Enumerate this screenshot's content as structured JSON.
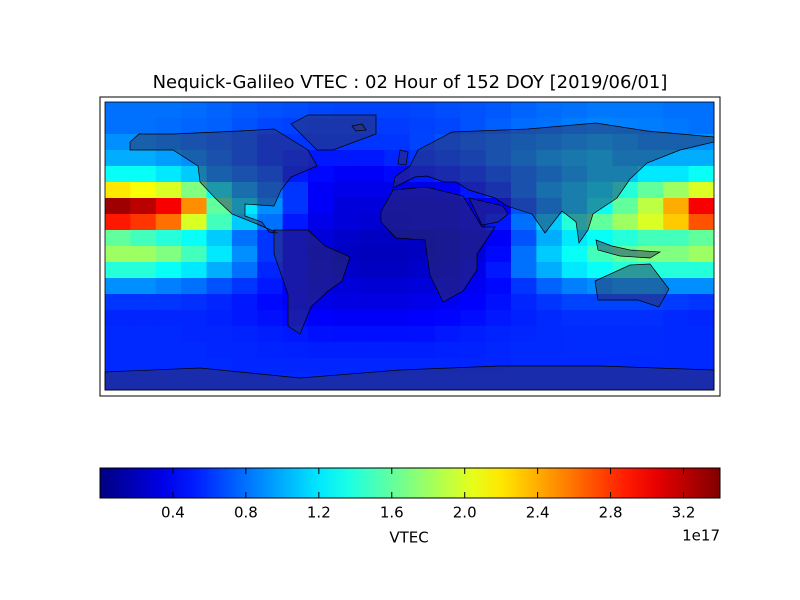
{
  "chart_data": {
    "type": "heatmap",
    "title": "Nequick-Galileo VTEC : 02 Hour of 152 DOY [2019/06/01]",
    "colormap": "jet",
    "clim": [
      0,
      3.4
    ],
    "colorbar_label": "VTEC",
    "colorbar_offset_label": "1e17",
    "colorbar_ticks": [
      0.4,
      0.8,
      1.2,
      1.6,
      {
        "value": 2,
        "label": "2.0"
      },
      2.4,
      2.8,
      3.2
    ],
    "values": [
      [
        0.8,
        0.8,
        0.8,
        0.78,
        0.75,
        0.72,
        0.7,
        0.68,
        0.66,
        0.65,
        0.65,
        0.65,
        0.66,
        0.68,
        0.7,
        0.72,
        0.75,
        0.78,
        0.8,
        0.82,
        0.82,
        0.82,
        0.8,
        0.8
      ],
      [
        0.8,
        0.8,
        0.78,
        0.76,
        0.74,
        0.7,
        0.66,
        0.64,
        0.62,
        0.62,
        0.62,
        0.62,
        0.64,
        0.66,
        0.7,
        0.74,
        0.78,
        0.8,
        0.84,
        0.86,
        0.85,
        0.84,
        0.82,
        0.8
      ],
      [
        0.9,
        0.9,
        0.85,
        0.8,
        0.75,
        0.7,
        0.6,
        0.6,
        0.6,
        0.6,
        0.6,
        0.6,
        0.65,
        0.7,
        0.75,
        0.8,
        0.85,
        0.9,
        0.95,
        1.0,
        0.95,
        0.9,
        0.9,
        0.9
      ],
      [
        1.0,
        1.0,
        0.95,
        0.9,
        0.8,
        0.7,
        0.6,
        0.55,
        0.5,
        0.5,
        0.5,
        0.55,
        0.6,
        0.65,
        0.7,
        0.8,
        0.9,
        1.0,
        1.05,
        1.1,
        1.0,
        1.0,
        1.0,
        1.0
      ],
      [
        1.3,
        1.3,
        1.2,
        1.1,
        0.9,
        0.8,
        0.7,
        0.5,
        0.45,
        0.4,
        0.4,
        0.45,
        0.5,
        0.55,
        0.6,
        0.7,
        0.8,
        0.9,
        1.0,
        1.1,
        1.1,
        1.2,
        1.2,
        1.3
      ],
      [
        2.2,
        2.1,
        2.0,
        1.7,
        1.3,
        1.0,
        0.8,
        0.6,
        0.4,
        0.35,
        0.35,
        0.35,
        0.35,
        0.4,
        0.5,
        0.6,
        0.8,
        1.0,
        1.1,
        1.2,
        1.4,
        1.6,
        1.8,
        2.0
      ],
      [
        3.3,
        3.2,
        3.0,
        2.5,
        1.6,
        1.2,
        0.9,
        0.6,
        0.4,
        0.3,
        0.3,
        0.3,
        0.3,
        0.3,
        0.35,
        0.4,
        0.7,
        0.9,
        1.1,
        1.3,
        1.6,
        1.9,
        2.4,
        3.0
      ],
      [
        2.9,
        2.8,
        2.6,
        2.0,
        1.5,
        1.1,
        0.8,
        0.5,
        0.35,
        0.3,
        0.28,
        0.28,
        0.3,
        0.3,
        0.35,
        0.5,
        0.8,
        1.1,
        1.4,
        1.6,
        1.8,
        2.0,
        2.3,
        2.7
      ],
      [
        1.6,
        1.5,
        1.4,
        1.3,
        1.1,
        0.8,
        0.6,
        0.4,
        0.3,
        0.25,
        0.22,
        0.22,
        0.22,
        0.25,
        0.3,
        0.4,
        0.7,
        1.0,
        1.2,
        1.3,
        1.4,
        1.5,
        1.5,
        1.6
      ],
      [
        1.8,
        1.8,
        1.7,
        1.5,
        1.2,
        0.9,
        0.6,
        0.4,
        0.28,
        0.22,
        0.2,
        0.2,
        0.22,
        0.25,
        0.3,
        0.45,
        0.8,
        1.1,
        1.3,
        1.5,
        1.6,
        1.7,
        1.7,
        1.8
      ],
      [
        1.4,
        1.4,
        1.3,
        1.2,
        1.0,
        0.8,
        0.55,
        0.4,
        0.3,
        0.25,
        0.22,
        0.22,
        0.25,
        0.28,
        0.35,
        0.5,
        0.8,
        1.0,
        1.2,
        1.3,
        1.4,
        1.4,
        1.4,
        1.4
      ],
      [
        0.9,
        0.9,
        0.85,
        0.8,
        0.7,
        0.6,
        0.5,
        0.4,
        0.32,
        0.3,
        0.28,
        0.28,
        0.3,
        0.32,
        0.38,
        0.45,
        0.6,
        0.75,
        0.85,
        0.9,
        0.95,
        0.95,
        0.9,
        0.9
      ],
      [
        0.6,
        0.6,
        0.6,
        0.58,
        0.55,
        0.5,
        0.45,
        0.4,
        0.35,
        0.33,
        0.33,
        0.33,
        0.35,
        0.38,
        0.42,
        0.48,
        0.55,
        0.6,
        0.65,
        0.65,
        0.65,
        0.65,
        0.62,
        0.6
      ],
      [
        0.55,
        0.55,
        0.55,
        0.55,
        0.53,
        0.5,
        0.48,
        0.45,
        0.42,
        0.4,
        0.4,
        0.4,
        0.42,
        0.44,
        0.46,
        0.5,
        0.53,
        0.56,
        0.58,
        0.58,
        0.58,
        0.58,
        0.56,
        0.55
      ],
      [
        0.56,
        0.56,
        0.56,
        0.55,
        0.55,
        0.54,
        0.52,
        0.5,
        0.48,
        0.47,
        0.47,
        0.47,
        0.48,
        0.5,
        0.52,
        0.54,
        0.55,
        0.56,
        0.57,
        0.57,
        0.57,
        0.57,
        0.56,
        0.56
      ],
      [
        0.56,
        0.56,
        0.56,
        0.56,
        0.55,
        0.55,
        0.54,
        0.53,
        0.52,
        0.52,
        0.52,
        0.52,
        0.52,
        0.53,
        0.54,
        0.55,
        0.56,
        0.56,
        0.57,
        0.57,
        0.57,
        0.57,
        0.56,
        0.56
      ],
      [
        0.56,
        0.56,
        0.56,
        0.56,
        0.56,
        0.55,
        0.55,
        0.55,
        0.55,
        0.55,
        0.55,
        0.55,
        0.55,
        0.55,
        0.55,
        0.55,
        0.56,
        0.56,
        0.56,
        0.56,
        0.56,
        0.56,
        0.56,
        0.56
      ],
      [
        0.56,
        0.56,
        0.56,
        0.56,
        0.56,
        0.56,
        0.56,
        0.56,
        0.56,
        0.56,
        0.56,
        0.56,
        0.56,
        0.56,
        0.56,
        0.56,
        0.56,
        0.56,
        0.56,
        0.56,
        0.56,
        0.56,
        0.56,
        0.56
      ]
    ]
  }
}
